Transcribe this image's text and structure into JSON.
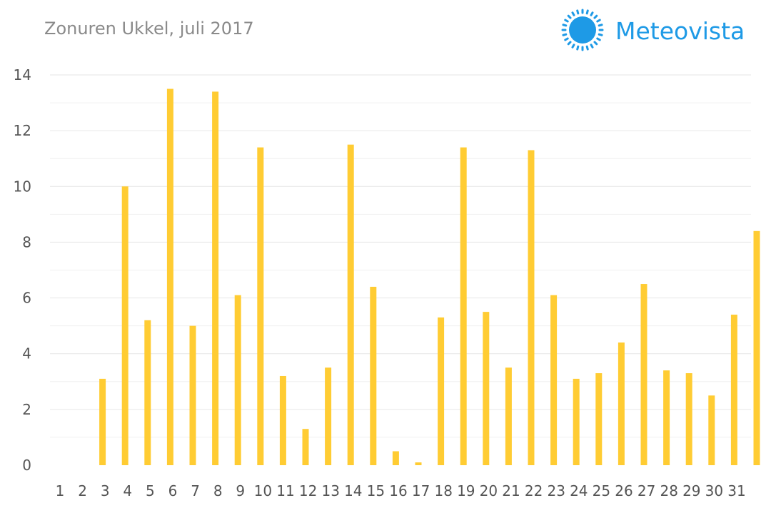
{
  "header": {
    "title": "Zonuren Ukkel, juli 2017"
  },
  "brand": {
    "name": "Meteovista",
    "logo_icon": "sun-icon",
    "color": "#1e9ae6"
  },
  "chart_data": {
    "type": "bar",
    "title": "Zonuren Ukkel, juli 2017",
    "xlabel": "",
    "ylabel": "",
    "ylim": [
      0,
      14
    ],
    "yticks": [
      0,
      2,
      4,
      6,
      8,
      10,
      12,
      14
    ],
    "grid": true,
    "bar_color": "#ffcc33",
    "categories": [
      "1",
      "2",
      "3",
      "4",
      "5",
      "6",
      "7",
      "8",
      "9",
      "10",
      "11",
      "12",
      "13",
      "14",
      "15",
      "16",
      "17",
      "18",
      "19",
      "20",
      "21",
      "22",
      "23",
      "24",
      "25",
      "26",
      "27",
      "28",
      "29",
      "30",
      "31"
    ],
    "values": [
      0,
      3.1,
      10.0,
      5.2,
      13.5,
      5.0,
      13.4,
      6.1,
      11.4,
      3.2,
      1.3,
      3.5,
      11.5,
      6.4,
      0.5,
      0.1,
      5.3,
      11.4,
      5.5,
      3.5,
      11.3,
      6.1,
      3.1,
      3.3,
      4.4,
      6.5,
      3.4,
      3.3,
      2.5,
      5.4,
      8.4
    ]
  }
}
